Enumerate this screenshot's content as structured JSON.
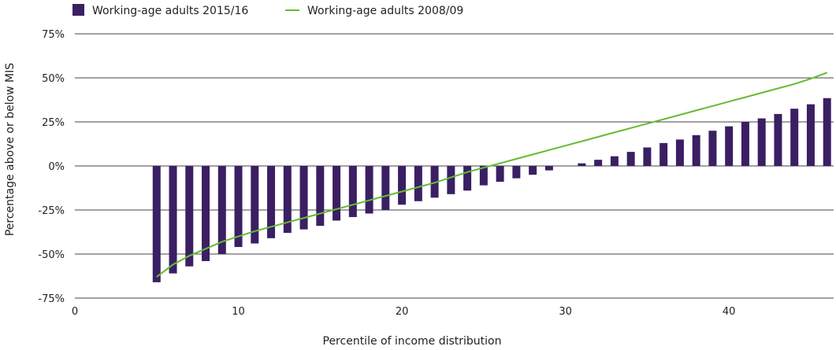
{
  "chart_data": {
    "type": "bar",
    "title": "",
    "xlabel": "Percentile of income distribution",
    "ylabel": "Percentage above or below MIS",
    "xlim": [
      0,
      46.4
    ],
    "ylim": [
      -75,
      75
    ],
    "x_ticks": [
      {
        "value": 0,
        "label": "0"
      },
      {
        "value": 10,
        "label": "10"
      },
      {
        "value": 20,
        "label": "20"
      },
      {
        "value": 30,
        "label": "30"
      },
      {
        "value": 40,
        "label": "40"
      }
    ],
    "y_ticks": [
      {
        "value": 75,
        "label": "75%"
      },
      {
        "value": 50,
        "label": "50%"
      },
      {
        "value": 25,
        "label": "25%"
      },
      {
        "value": 0,
        "label": "0%"
      },
      {
        "value": -25,
        "label": "-25%"
      },
      {
        "value": -50,
        "label": "-50%"
      },
      {
        "value": -75,
        "label": "-75%"
      }
    ],
    "grid": true,
    "legend_position": "top-left",
    "series": [
      {
        "name": "Working-age adults 2015/16",
        "type": "bar",
        "color": "#3a1f63",
        "x": [
          5,
          6,
          7,
          8,
          9,
          10,
          11,
          12,
          13,
          14,
          15,
          16,
          17,
          18,
          19,
          20,
          21,
          22,
          23,
          24,
          25,
          26,
          27,
          28,
          29,
          30,
          31,
          32,
          33,
          34,
          35,
          36,
          37,
          38,
          39,
          40,
          41,
          42,
          43,
          44,
          45,
          46
        ],
        "values": [
          -66,
          -61,
          -57,
          -54,
          -50,
          -46,
          -44,
          -41,
          -38,
          -36,
          -34,
          -31,
          -29,
          -27,
          -25,
          -22,
          -20,
          -18,
          -16,
          -14,
          -11,
          -9,
          -7,
          -5,
          -2.5,
          0,
          1.5,
          3.5,
          5.5,
          8,
          10.5,
          13,
          15,
          17.5,
          20,
          22.5,
          25,
          27,
          29.5,
          32.5,
          35,
          38.5
        ]
      },
      {
        "name": "Working-age adults 2008/09",
        "type": "line",
        "color": "#66bb33",
        "x": [
          5,
          6,
          7,
          8,
          9,
          10,
          11,
          12,
          13,
          14,
          15,
          16,
          17,
          18,
          19,
          20,
          21,
          22,
          23,
          24,
          25,
          26,
          27,
          28,
          29,
          30,
          31,
          32,
          33,
          34,
          35,
          36,
          37,
          38,
          39,
          40,
          41,
          42,
          43,
          44,
          45,
          46
        ],
        "values": [
          -63,
          -56,
          -51,
          -47,
          -43,
          -40,
          -37,
          -34.5,
          -32,
          -29.5,
          -27,
          -24.5,
          -22,
          -19.5,
          -17,
          -14.5,
          -12,
          -9.5,
          -6.5,
          -3.5,
          -1,
          1.5,
          4,
          6.5,
          9,
          11.5,
          14,
          16.5,
          19,
          21.5,
          24,
          26.5,
          29,
          31.5,
          34,
          36.5,
          39,
          41.5,
          44,
          46.5,
          49.5,
          53
        ]
      }
    ]
  }
}
